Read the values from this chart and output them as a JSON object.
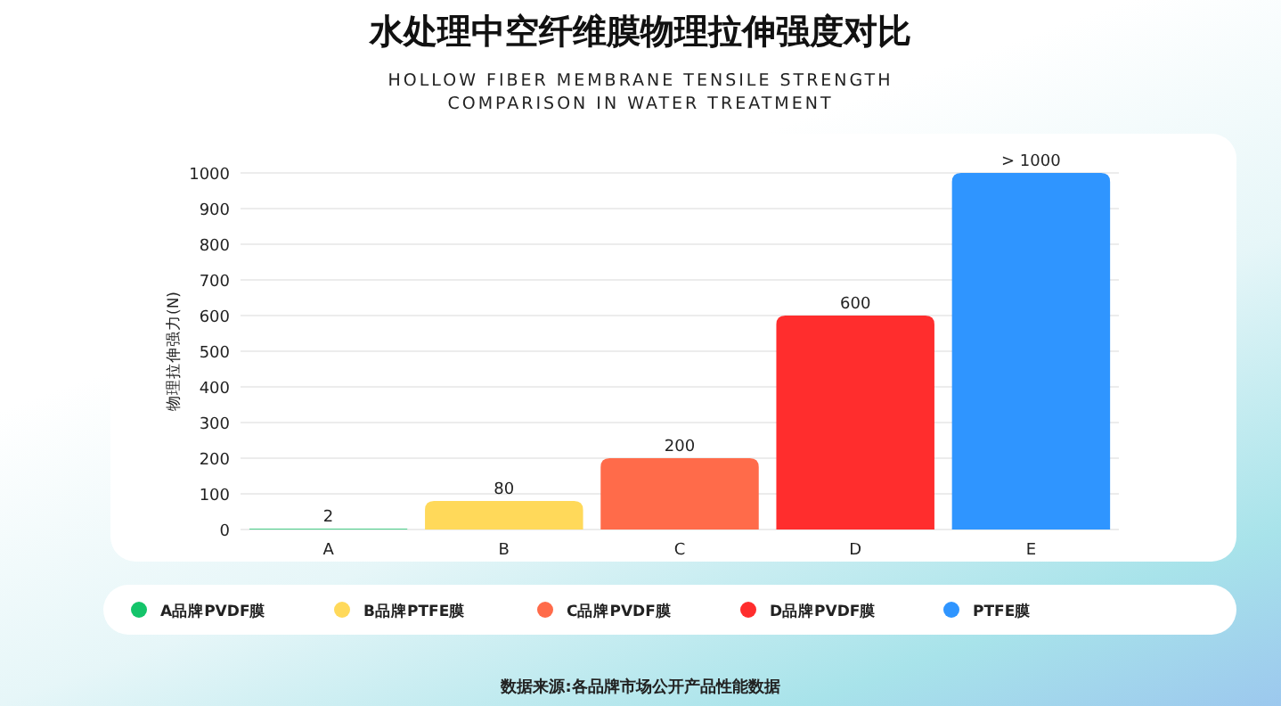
{
  "chart_data": {
    "type": "bar",
    "title": "水处理中空纤维膜物理拉伸强度对比",
    "subtitle": "HOLLOW FIBER MEMBRANE TENSILE STRENGTH COMPARISON IN WATER TREATMENT",
    "ylabel": "物理拉伸强力(N)",
    "categories": [
      "A",
      "B",
      "C",
      "D",
      "E"
    ],
    "series": [
      {
        "name": "A品牌PVDF膜",
        "color": "#14c46a",
        "values": [
          2,
          null,
          null,
          null,
          null
        ],
        "value_labels": [
          "2",
          null,
          null,
          null,
          null
        ]
      },
      {
        "name": "B品牌PTFE膜",
        "color": "#ffd95a",
        "values": [
          null,
          80,
          null,
          null,
          null
        ],
        "value_labels": [
          null,
          "80",
          null,
          null,
          null
        ]
      },
      {
        "name": "C品牌PVDF膜",
        "color": "#ff6b4a",
        "values": [
          null,
          null,
          200,
          null,
          null
        ],
        "value_labels": [
          null,
          null,
          "200",
          null,
          null
        ]
      },
      {
        "name": "D品牌PVDF膜",
        "color": "#ff2d2d",
        "values": [
          null,
          null,
          null,
          600,
          null
        ],
        "value_labels": [
          null,
          null,
          null,
          "600",
          null
        ]
      },
      {
        "name": "PTFE膜",
        "color": "#2f95ff",
        "values": [
          null,
          null,
          null,
          null,
          1000
        ],
        "value_labels": [
          null,
          null,
          null,
          null,
          "> 1000"
        ]
      }
    ],
    "ylim": [
      0,
      1000
    ],
    "yticks": [
      0,
      100,
      200,
      300,
      400,
      500,
      600,
      700,
      800,
      900,
      1000
    ],
    "grid": "y",
    "legend": "bottom",
    "annotations": [
      "数据来源:各品牌市场公开产品性能数据"
    ]
  }
}
